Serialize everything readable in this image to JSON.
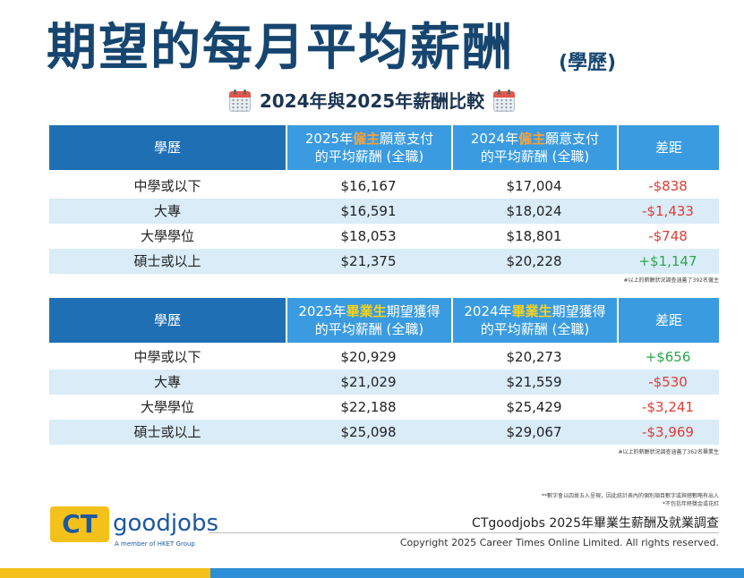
{
  "title": {
    "main": "期望的每月平均薪酬",
    "suffix": "(學歷)"
  },
  "subtitle": {
    "text": "2024年與2025年薪酬比較",
    "icon": "calendar-icon"
  },
  "employer_table": {
    "headers": {
      "education": "學歷",
      "col2_pre": "2025年",
      "col2_hl": "僱主",
      "col2_post": "願意支付",
      "col2_line2": "的平均薪酬 (全職)",
      "col3_pre": "2024年",
      "col3_hl": "僱主",
      "col3_post": "願意支付",
      "col3_line2": "的平均薪酬 (全職)",
      "diff": "差距"
    },
    "rows": [
      {
        "education": "中學或以下",
        "y2025": "$16,167",
        "y2024": "$17,004",
        "diff": "-$838"
      },
      {
        "education": "大專",
        "y2025": "$16,591",
        "y2024": "$18,024",
        "diff": "-$1,433"
      },
      {
        "education": "大學學位",
        "y2025": "$18,053",
        "y2024": "$18,801",
        "diff": "-$748"
      },
      {
        "education": "碩士或以上",
        "y2025": "$21,375",
        "y2024": "$20,228",
        "diff": "+$1,147"
      }
    ],
    "note": "#以上的薪酬狀況調查涵蓋了392名僱主"
  },
  "graduate_table": {
    "headers": {
      "education": "學歷",
      "col2_pre": "2025年",
      "col2_hl": "畢業生",
      "col2_post": "期望獲得",
      "col2_line2": "的平均薪酬 (全職)",
      "col3_pre": "2024年",
      "col3_hl": "畢業生",
      "col3_post": "期望獲得",
      "col3_line2": "的平均薪酬 (全職)",
      "diff": "差距"
    },
    "rows": [
      {
        "education": "中學或以下",
        "y2025": "$20,929",
        "y2024": "$20,273",
        "diff": "+$656"
      },
      {
        "education": "大專",
        "y2025": "$21,029",
        "y2024": "$21,559",
        "diff": "-$530"
      },
      {
        "education": "大學學位",
        "y2025": "$22,188",
        "y2024": "$25,429",
        "diff": "-$3,241"
      },
      {
        "education": "碩士或以上",
        "y2025": "$25,098",
        "y2024": "$29,067",
        "diff": "-$3,969"
      }
    ],
    "note": "#以上的薪酬狀況調查涵蓋了362名畢業生"
  },
  "footer": {
    "note1": "**數字會以四捨五入呈現，因此統計表內的個別項目數字或與總數略有出入",
    "note2": "*不包括年終獎金或花紅",
    "survey": "CTgoodjobs 2025年畢業生薪酬及就業調查",
    "copyright": "Copyright 2025 Career Times Online Limited. All rights reserved."
  },
  "logo": {
    "ct": "CT",
    "goodjobs": "goodjobs",
    "member": "A member of HKET Group"
  },
  "colors": {
    "title": "#16456f",
    "header_dark": "#1f6fb5",
    "header_light": "#3a9be0",
    "row_alt": "#d9ecf8",
    "negative": "#e23b32",
    "positive": "#2aa84a",
    "brand_yellow": "#f4c11b"
  }
}
